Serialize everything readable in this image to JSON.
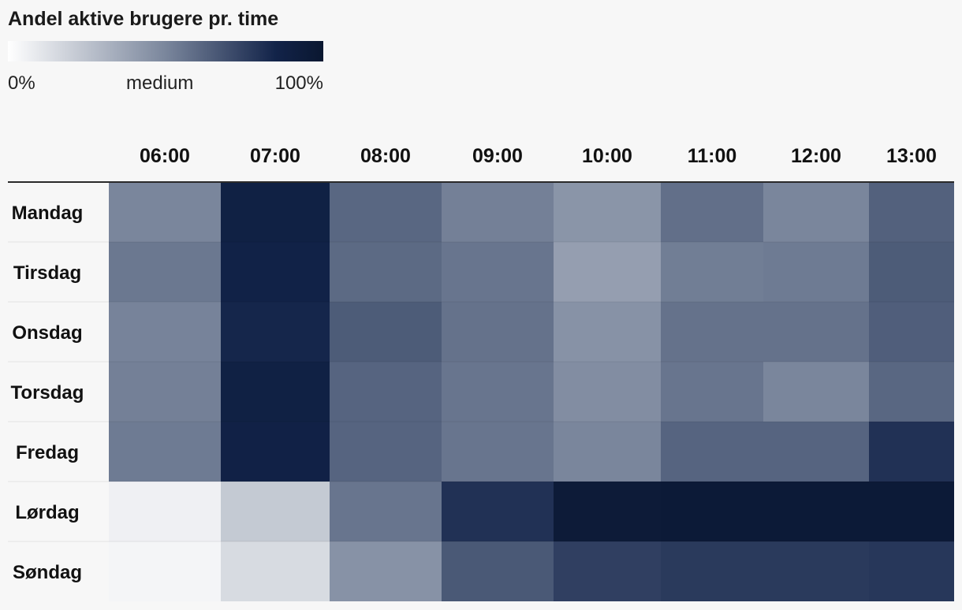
{
  "legend": {
    "title": "Andel aktive brugere pr. time",
    "min_label": "0%",
    "mid_label": "medium",
    "max_label": "100%",
    "colors": [
      "#ffffff",
      "#7a869c",
      "#122349",
      "#0a1730"
    ]
  },
  "chart_data": {
    "type": "heatmap",
    "title": "Andel aktive brugere pr. time",
    "x": [
      "06:00",
      "07:00",
      "08:00",
      "09:00",
      "10:00",
      "11:00",
      "12:00",
      "13:00"
    ],
    "y": [
      "Mandag",
      "Tirsdag",
      "Onsdag",
      "Torsdag",
      "Fredag",
      "Lørdag",
      "Søndag"
    ],
    "values": [
      [
        50,
        88,
        61,
        52,
        44,
        58,
        50,
        63
      ],
      [
        55,
        86,
        60,
        56,
        40,
        53,
        54,
        65
      ],
      [
        51,
        84,
        65,
        57,
        45,
        57,
        57,
        64
      ],
      [
        52,
        88,
        62,
        56,
        47,
        56,
        50,
        61
      ],
      [
        54,
        87,
        62,
        56,
        50,
        62,
        62,
        80
      ],
      [
        6,
        22,
        56,
        80,
        95,
        96,
        96,
        96
      ],
      [
        4,
        15,
        45,
        66,
        75,
        77,
        77,
        78
      ]
    ],
    "value_range": [
      0,
      100
    ],
    "xlabel": "",
    "ylabel": "",
    "grid": true,
    "legend_position": "top-left"
  }
}
